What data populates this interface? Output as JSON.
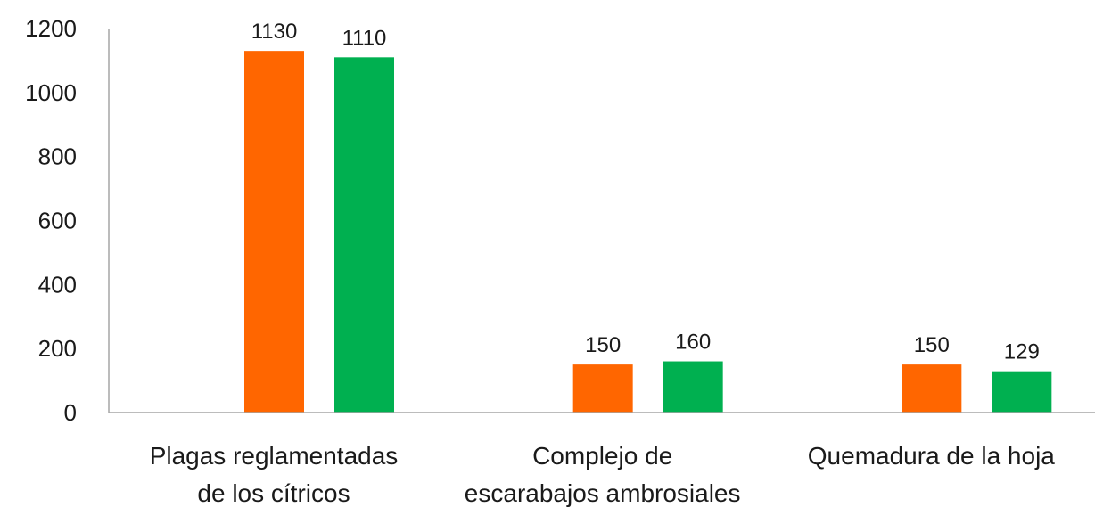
{
  "chart_data": {
    "type": "bar",
    "categories": [
      [
        "Plagas reglamentadas",
        "de los cítricos"
      ],
      [
        "Complejo de",
        "escarabajos ambrosiales"
      ],
      [
        "Quemadura de la hoja"
      ]
    ],
    "series": [
      {
        "values": [
          1130,
          150,
          150
        ],
        "color": "#ff6600"
      },
      {
        "values": [
          1110,
          160,
          129
        ],
        "color": "#00b050"
      }
    ],
    "yticks": [
      "0",
      "200",
      "400",
      "600",
      "800",
      "1000",
      "1200"
    ],
    "ylim": [
      0,
      1200
    ],
    "data_labels": [
      [
        "1130",
        "150",
        "150"
      ],
      [
        "1110",
        "160",
        "129"
      ]
    ],
    "title": "",
    "xlabel": "",
    "ylabel": "",
    "grid": false,
    "legend": "none",
    "axis_color": "#a6a6a6"
  }
}
